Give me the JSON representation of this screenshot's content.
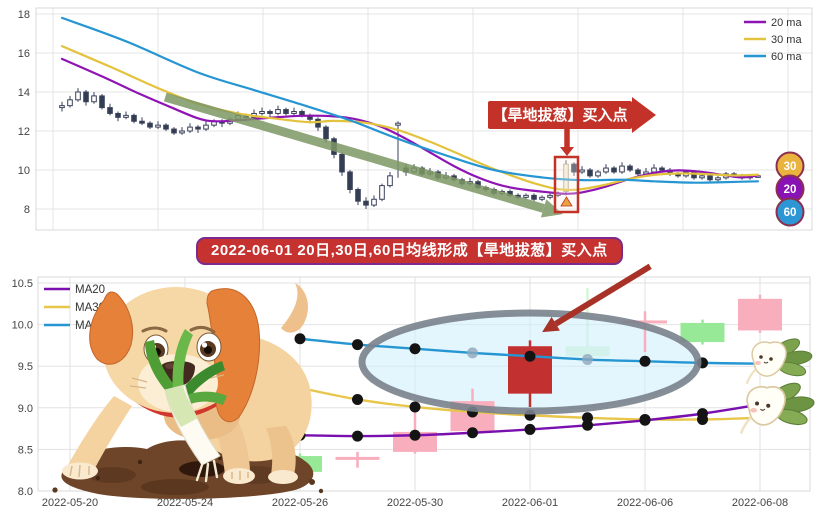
{
  "banner": {
    "text": "2022-06-01 20日,30日,60日均线形成【旱地拔葱】买入点",
    "bg": "#c5322f",
    "border": "#7b2b8e"
  },
  "chart_data": [
    {
      "name": "daily-kline-overview",
      "type": "candlestick",
      "yticks": [
        8,
        10,
        12,
        14,
        16,
        18
      ],
      "ylim": [
        6.9,
        18.3
      ],
      "grid": true,
      "legend_position": "top-right",
      "legend": [
        {
          "label": "20 ma",
          "color": "#8e14b4"
        },
        {
          "label": "30 ma",
          "color": "#e3c23c"
        },
        {
          "label": "60 ma",
          "color": "#2596d2"
        }
      ],
      "badges": [
        {
          "label": "30",
          "color": "#eab33e"
        },
        {
          "label": "20",
          "color": "#8912b4"
        },
        {
          "label": "60",
          "color": "#2d96d4"
        }
      ],
      "badge_border": "#8b2e4f",
      "callout_label": "【旱地拔葱】买入点",
      "callout_color": "#c23229",
      "highlight_index": 63,
      "highlight_box_color": "#c23229",
      "marker_color": "#e8a33d",
      "candle_up_fill": "#ffffff",
      "candle_down_fill": "#333d52",
      "candle_stroke": "#39415a",
      "trend_arrow": {
        "from": [
          12.9,
          13.74
        ],
        "to": [
          62.6,
          7.74
        ],
        "color": "#7d9765"
      },
      "candles": [
        [
          13.2,
          13.5,
          13.0,
          13.3
        ],
        [
          13.3,
          13.8,
          13.2,
          13.6
        ],
        [
          13.6,
          14.2,
          13.5,
          14.0
        ],
        [
          14.0,
          14.1,
          13.3,
          13.5
        ],
        [
          13.5,
          14.0,
          13.4,
          13.8
        ],
        [
          13.8,
          13.9,
          13.1,
          13.2
        ],
        [
          13.2,
          13.4,
          12.8,
          12.9
        ],
        [
          12.9,
          13.0,
          12.5,
          12.7
        ],
        [
          12.7,
          13.0,
          12.6,
          12.8
        ],
        [
          12.8,
          12.9,
          12.4,
          12.5
        ],
        [
          12.5,
          12.7,
          12.3,
          12.4
        ],
        [
          12.4,
          12.5,
          12.1,
          12.2
        ],
        [
          12.2,
          12.5,
          12.1,
          12.3
        ],
        [
          12.3,
          12.4,
          12.0,
          12.1
        ],
        [
          12.1,
          12.2,
          11.8,
          11.9
        ],
        [
          11.9,
          12.2,
          11.8,
          12.0
        ],
        [
          12.0,
          12.4,
          11.9,
          12.2
        ],
        [
          12.2,
          12.3,
          11.9,
          12.1
        ],
        [
          12.1,
          12.5,
          12.0,
          12.3
        ],
        [
          12.3,
          12.6,
          12.2,
          12.5
        ],
        [
          12.5,
          12.6,
          12.2,
          12.4
        ],
        [
          12.4,
          12.7,
          12.3,
          12.6
        ],
        [
          12.6,
          13.0,
          12.5,
          12.8
        ],
        [
          12.8,
          12.9,
          12.5,
          12.7
        ],
        [
          12.7,
          13.1,
          12.6,
          12.9
        ],
        [
          12.9,
          13.2,
          12.8,
          13.0
        ],
        [
          13.0,
          13.1,
          12.7,
          12.9
        ],
        [
          12.9,
          13.3,
          12.8,
          13.1
        ],
        [
          13.1,
          13.2,
          12.8,
          12.9
        ],
        [
          12.9,
          13.2,
          12.8,
          13.0
        ],
        [
          13.0,
          13.1,
          12.7,
          12.8
        ],
        [
          12.8,
          12.9,
          12.4,
          12.6
        ],
        [
          12.6,
          12.7,
          12.0,
          12.2
        ],
        [
          12.2,
          12.3,
          11.4,
          11.6
        ],
        [
          11.6,
          11.7,
          10.6,
          10.8
        ],
        [
          10.8,
          10.9,
          9.7,
          9.9
        ],
        [
          9.9,
          10.0,
          8.8,
          9.0
        ],
        [
          9.0,
          9.1,
          8.2,
          8.4
        ],
        [
          8.4,
          8.6,
          8.0,
          8.2
        ],
        [
          8.2,
          8.7,
          8.1,
          8.5
        ],
        [
          8.5,
          9.3,
          8.4,
          9.2
        ],
        [
          9.2,
          9.9,
          9.1,
          9.7
        ],
        [
          12.3,
          12.5,
          9.6,
          12.4
        ],
        [
          10.1,
          10.3,
          9.7,
          9.9
        ],
        [
          9.9,
          10.3,
          9.8,
          10.1
        ],
        [
          10.1,
          10.2,
          9.7,
          9.8
        ],
        [
          9.8,
          10.1,
          9.7,
          9.9
        ],
        [
          9.9,
          10.0,
          9.5,
          9.6
        ],
        [
          9.6,
          9.9,
          9.5,
          9.7
        ],
        [
          9.7,
          9.8,
          9.4,
          9.5
        ],
        [
          9.5,
          9.6,
          9.2,
          9.3
        ],
        [
          9.3,
          9.6,
          9.2,
          9.4
        ],
        [
          9.4,
          9.5,
          9.0,
          9.1
        ],
        [
          9.1,
          9.2,
          8.9,
          9.0
        ],
        [
          9.0,
          9.1,
          8.7,
          8.8
        ],
        [
          8.8,
          9.0,
          8.7,
          8.9
        ],
        [
          8.9,
          9.0,
          8.6,
          8.7
        ],
        [
          8.7,
          8.8,
          8.5,
          8.6
        ],
        [
          8.6,
          8.8,
          8.5,
          8.7
        ],
        [
          8.7,
          8.8,
          8.4,
          8.5
        ],
        [
          8.5,
          8.7,
          8.4,
          8.6
        ],
        [
          8.6,
          8.8,
          8.5,
          8.7
        ],
        [
          8.7,
          8.9,
          8.6,
          8.8
        ],
        [
          8.9,
          10.5,
          8.7,
          10.3
        ],
        [
          10.3,
          10.4,
          9.7,
          9.9
        ],
        [
          9.9,
          10.2,
          9.8,
          10.0
        ],
        [
          10.0,
          10.1,
          9.6,
          9.7
        ],
        [
          9.7,
          10.0,
          9.6,
          9.9
        ],
        [
          9.9,
          10.3,
          9.8,
          10.1
        ],
        [
          10.1,
          10.2,
          9.8,
          9.9
        ],
        [
          9.9,
          10.4,
          9.8,
          10.2
        ],
        [
          10.2,
          10.3,
          9.9,
          10.0
        ],
        [
          10.0,
          10.1,
          9.7,
          9.8
        ],
        [
          9.8,
          10.1,
          9.7,
          9.9
        ],
        [
          9.9,
          10.3,
          9.8,
          10.1
        ],
        [
          10.1,
          10.2,
          9.9,
          10.0
        ],
        [
          10.0,
          10.1,
          9.7,
          9.8
        ],
        [
          9.8,
          9.9,
          9.6,
          9.7
        ],
        [
          9.7,
          10.0,
          9.6,
          9.9
        ],
        [
          9.9,
          10.0,
          9.5,
          9.6
        ],
        [
          9.6,
          9.8,
          9.5,
          9.7
        ],
        [
          9.7,
          9.8,
          9.4,
          9.5
        ],
        [
          9.5,
          9.7,
          9.4,
          9.6
        ],
        [
          9.6,
          9.9,
          9.5,
          9.8
        ],
        [
          9.8,
          9.9,
          9.6,
          9.7
        ],
        [
          9.7,
          9.8,
          9.5,
          9.6
        ],
        [
          9.6,
          9.8,
          9.5,
          9.7
        ],
        [
          9.7,
          9.8,
          9.6,
          9.7
        ]
      ],
      "ma_lines": [
        {
          "name": "20 ma",
          "color": "#8e14b4",
          "points": [
            [
              0,
              15.7
            ],
            [
              5,
              14.8
            ],
            [
              10,
              13.85
            ],
            [
              14,
              13.15
            ],
            [
              17,
              12.65
            ],
            [
              19,
              12.5
            ],
            [
              22,
              12.55
            ],
            [
              26,
              12.68
            ],
            [
              30,
              12.78
            ],
            [
              34,
              12.75
            ],
            [
              37,
              12.58
            ],
            [
              40,
              12.2
            ],
            [
              43,
              11.6
            ],
            [
              46,
              10.9
            ],
            [
              49,
              10.2
            ],
            [
              52,
              9.62
            ],
            [
              55,
              9.2
            ],
            [
              58,
              8.98
            ],
            [
              61,
              8.85
            ],
            [
              63,
              8.78
            ],
            [
              65,
              8.85
            ],
            [
              68,
              9.15
            ],
            [
              71,
              9.55
            ],
            [
              74,
              9.85
            ],
            [
              77,
              9.98
            ],
            [
              80,
              9.9
            ],
            [
              83,
              9.72
            ],
            [
              85,
              9.62
            ],
            [
              87,
              9.72
            ]
          ]
        },
        {
          "name": "30 ma",
          "color": "#e3c23c",
          "points": [
            [
              0,
              16.35
            ],
            [
              6,
              15.3
            ],
            [
              12,
              14.2
            ],
            [
              17,
              13.4
            ],
            [
              22,
              12.9
            ],
            [
              27,
              12.62
            ],
            [
              31,
              12.45
            ],
            [
              34,
              12.52
            ],
            [
              38,
              12.42
            ],
            [
              42,
              12.05
            ],
            [
              46,
              11.45
            ],
            [
              50,
              10.75
            ],
            [
              54,
              10.05
            ],
            [
              58,
              9.45
            ],
            [
              61,
              9.1
            ],
            [
              63,
              8.98
            ],
            [
              65,
              9.02
            ],
            [
              68,
              9.25
            ],
            [
              71,
              9.55
            ],
            [
              74,
              9.75
            ],
            [
              77,
              9.82
            ],
            [
              80,
              9.8
            ],
            [
              84,
              9.72
            ],
            [
              87,
              9.76
            ]
          ]
        },
        {
          "name": "60 ma",
          "color": "#2596d2",
          "points": [
            [
              0,
              17.8
            ],
            [
              8,
              16.6
            ],
            [
              17,
              15.0
            ],
            [
              24,
              14.1
            ],
            [
              30,
              13.35
            ],
            [
              36,
              12.55
            ],
            [
              42,
              11.6
            ],
            [
              48,
              10.75
            ],
            [
              54,
              10.0
            ],
            [
              60,
              9.62
            ],
            [
              65,
              9.48
            ],
            [
              70,
              9.5
            ],
            [
              74,
              9.42
            ],
            [
              79,
              9.35
            ],
            [
              83,
              9.38
            ],
            [
              87,
              9.42
            ]
          ]
        }
      ]
    },
    {
      "name": "zoomed-kline-buy-point",
      "type": "candlestick",
      "yticks": [
        "8.0",
        "8.5",
        "9.0",
        "9.5",
        "10.0",
        "10.5"
      ],
      "ytick_values": [
        8,
        8.5,
        9,
        9.5,
        10,
        10.5
      ],
      "ylim": [
        7.95,
        10.55
      ],
      "grid": true,
      "x_labels": [
        "2022-05-20",
        "2022-05-24",
        "2022-05-26",
        "2022-05-30",
        "2022-06-01",
        "2022-06-06",
        "2022-06-08"
      ],
      "trading_days": [
        "2022-05-20",
        "2022-05-23",
        "2022-05-24",
        "2022-05-25",
        "2022-05-26",
        "2022-05-27",
        "2022-05-30",
        "2022-05-31",
        "2022-06-01",
        "2022-06-02",
        "2022-06-06",
        "2022-06-07",
        "2022-06-08"
      ],
      "legend_position": "top-left",
      "legend": [
        {
          "label": "MA20",
          "color": "#7a0fb0"
        },
        {
          "label": "MA30",
          "color": "#e7c64a"
        },
        {
          "label": "MA60",
          "color": "#2596d2"
        }
      ],
      "candle_colors": {
        "green": "#97e897",
        "pink": "#f8aebc",
        "red": "#c23030"
      },
      "candles": [
        {
          "date": "2022-05-26",
          "o": 8.42,
          "h": 8.45,
          "l": 8.05,
          "c": 8.23,
          "color": "green"
        },
        {
          "date": "2022-05-27",
          "o": 8.39,
          "h": 8.47,
          "l": 8.28,
          "c": 8.41,
          "color": "pink"
        },
        {
          "date": "2022-05-30",
          "o": 8.47,
          "h": 8.95,
          "l": 8.45,
          "c": 8.71,
          "color": "pink"
        },
        {
          "date": "2022-05-31",
          "o": 8.72,
          "h": 9.23,
          "l": 8.7,
          "c": 9.08,
          "color": "pink"
        },
        {
          "date": "2022-06-01",
          "o": 9.17,
          "h": 9.81,
          "l": 9.01,
          "c": 9.74,
          "color": "red"
        },
        {
          "date": "2022-06-02",
          "o": 9.74,
          "h": 10.44,
          "l": 9.56,
          "c": 9.62,
          "color": "green",
          "faded": true
        },
        {
          "date": "2022-06-06",
          "o": 10.02,
          "h": 10.16,
          "l": 9.67,
          "c": 10.05,
          "color": "pink"
        },
        {
          "date": "2022-06-07",
          "o": 10.02,
          "h": 10.06,
          "l": 9.76,
          "c": 9.79,
          "color": "green"
        },
        {
          "date": "2022-06-08",
          "o": 9.93,
          "h": 10.36,
          "l": 9.9,
          "c": 10.31,
          "color": "pink"
        }
      ],
      "ma_lines": [
        {
          "name": "MA20",
          "color": "#7a0fb0",
          "start": "2022-05-26",
          "values": [
            8.67,
            8.66,
            8.67,
            8.7,
            8.74,
            8.79,
            8.85,
            8.93,
            9.04
          ],
          "faded_dots": []
        },
        {
          "name": "MA30",
          "color": "#e7c64a",
          "start": "2022-05-26",
          "values": [
            9.24,
            9.1,
            9.01,
            8.95,
            8.91,
            8.88,
            8.86,
            8.86,
            8.88
          ],
          "faded_dots": []
        },
        {
          "name": "MA60",
          "color": "#2596d2",
          "start": "2022-05-26",
          "values": [
            9.83,
            9.76,
            9.71,
            9.66,
            9.62,
            9.58,
            9.56,
            9.54,
            9.53
          ],
          "faded_dots": [
            3,
            5
          ]
        }
      ],
      "dot_color": "#141414",
      "faded_dot_color": "#8fa8bc",
      "ellipse": {
        "center_day": "2022-06-01",
        "center_value": 9.55,
        "stroke": "#79828c",
        "fill": "#cdeefb"
      },
      "arrow": {
        "from_day_value": [
          10.09,
          10.7
        ],
        "to_day_value": [
          8.21,
          9.91
        ],
        "color": "#a83228"
      }
    }
  ]
}
